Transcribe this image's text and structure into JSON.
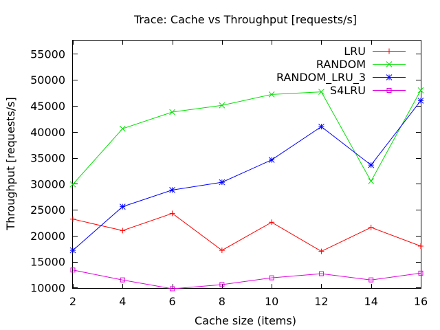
{
  "chart_data": {
    "type": "line",
    "title": "Trace: Cache vs Throughput [requests/s]",
    "xlabel": "Cache size (items)",
    "ylabel": "Throughput [requests/s]",
    "xlim": [
      2,
      16
    ],
    "ylim": [
      9800,
      57700
    ],
    "x_ticks": [
      2,
      4,
      6,
      8,
      10,
      12,
      14,
      16
    ],
    "y_ticks": [
      10000,
      15000,
      20000,
      25000,
      30000,
      35000,
      40000,
      45000,
      50000,
      55000
    ],
    "grid": false,
    "legend_position": "top-right",
    "x": [
      2,
      4,
      6,
      8,
      10,
      12,
      14,
      16
    ],
    "series": [
      {
        "name": "LRU",
        "color": "#ff0000",
        "marker": "plus",
        "values": [
          23200,
          21000,
          24300,
          17200,
          22600,
          17000,
          21600,
          18000
        ]
      },
      {
        "name": "RANDOM",
        "color": "#00e000",
        "marker": "cross",
        "values": [
          29900,
          40600,
          43800,
          45100,
          47200,
          47700,
          30500,
          48000
        ]
      },
      {
        "name": "RANDOM_LRU_3",
        "color": "#0000ff",
        "marker": "star",
        "values": [
          17200,
          25600,
          28800,
          30300,
          34600,
          41000,
          33600,
          46000
        ]
      },
      {
        "name": "S4LRU",
        "color": "#e000e0",
        "marker": "square",
        "values": [
          13400,
          11500,
          9800,
          10600,
          11900,
          12700,
          11500,
          12800
        ]
      }
    ]
  }
}
